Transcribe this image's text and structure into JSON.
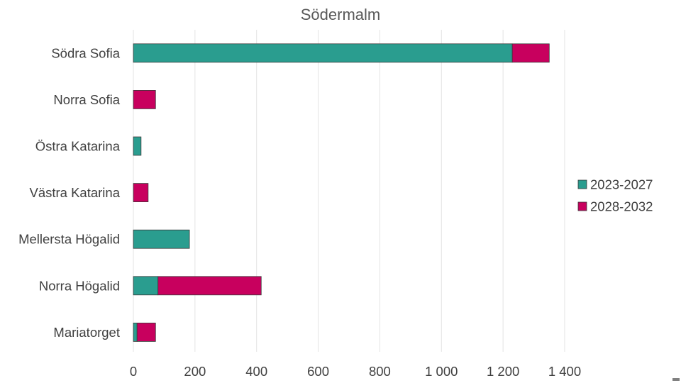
{
  "chart_data": {
    "type": "bar",
    "orientation": "horizontal",
    "stacked": true,
    "title": "Södermalm",
    "categories": [
      "Södra Sofia",
      "Norra Sofia",
      "Östra Katarina",
      "Västra Katarina",
      "Mellersta Högalid",
      "Norra Högalid",
      "Mariatorget"
    ],
    "series": [
      {
        "name": "2023-2027",
        "color": "#2a9d8f",
        "values": [
          1230,
          0,
          25,
          0,
          182,
          80,
          12
        ]
      },
      {
        "name": "2028-2032",
        "color": "#c8005e",
        "values": [
          120,
          72,
          0,
          48,
          0,
          335,
          60
        ]
      }
    ],
    "xlim": [
      0,
      1400
    ],
    "xticks": [
      0,
      200,
      400,
      600,
      800,
      1000,
      1200,
      1400
    ],
    "xtick_labels": [
      "0",
      "200",
      "400",
      "600",
      "800",
      "1 000",
      "1 200",
      "1 400"
    ],
    "grid": true,
    "legend_position": "right"
  }
}
